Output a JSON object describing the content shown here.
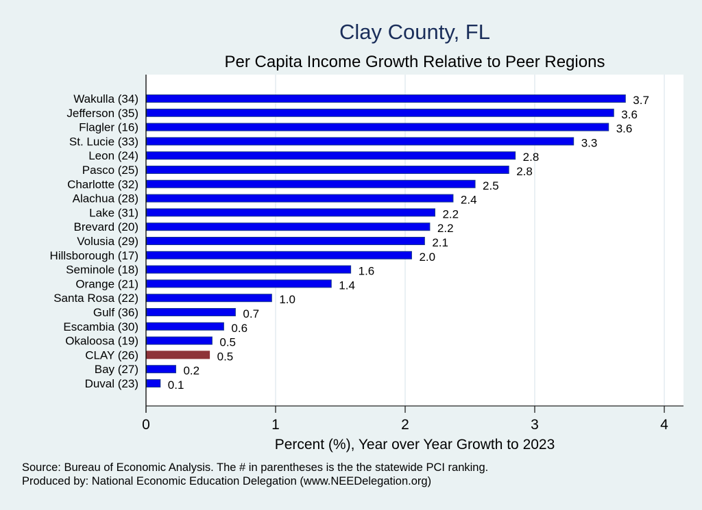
{
  "chart_data": {
    "type": "bar",
    "orientation": "horizontal",
    "title": "Clay County, FL",
    "subtitle": "Per Capita Income Growth Relative to Peer Regions",
    "xlabel": "Percent (%), Year over Year Growth to 2023",
    "ylabel": "",
    "xlim": [
      0,
      4.13
    ],
    "xticks": [
      "0",
      "1",
      "2",
      "3",
      "4"
    ],
    "xtick_values": [
      0,
      1,
      2,
      3,
      4
    ],
    "grid": true,
    "categories": [
      "Wakulla (34)",
      "Jefferson (35)",
      "Flagler (16)",
      "St. Lucie (33)",
      "Leon (24)",
      "Pasco (25)",
      "Charlotte (32)",
      "Alachua (28)",
      "Lake (31)",
      "Brevard (20)",
      "Volusia (29)",
      "Hillsborough (17)",
      "Seminole (18)",
      "Orange (21)",
      "Santa Rosa (22)",
      "Gulf (36)",
      "Escambia (30)",
      "Okaloosa (19)",
      "CLAY (26)",
      "Bay (27)",
      "Duval (23)"
    ],
    "values": [
      3.7,
      3.61,
      3.57,
      3.3,
      2.85,
      2.8,
      2.54,
      2.37,
      2.23,
      2.19,
      2.15,
      2.05,
      1.58,
      1.43,
      0.97,
      0.69,
      0.6,
      0.51,
      0.49,
      0.23,
      0.11
    ],
    "value_labels": [
      "3.7",
      "3.6",
      "3.6",
      "3.3",
      "2.8",
      "2.8",
      "2.5",
      "2.4",
      "2.2",
      "2.2",
      "2.1",
      "2.0",
      "1.6",
      "1.4",
      "1.0",
      "0.7",
      "0.6",
      "0.5",
      "0.5",
      "0.2",
      "0.1"
    ],
    "highlight_category": "CLAY (26)",
    "colors": {
      "bar": "#0000f2",
      "bar_edge": "#1a3a8a",
      "highlight": "#8e3339",
      "highlight_edge": "#8e3339",
      "plot_bg": "#ffffff",
      "page_bg": "#eaf2f3",
      "grid": "#e4ecf0",
      "title": "#1a2e5a"
    },
    "notes": [
      "Source: Bureau of Economic Analysis. The # in parentheses is the the statewide PCI ranking.",
      "Produced by: National Economic Education Delegation (www.NEEDelegation.org)"
    ]
  }
}
